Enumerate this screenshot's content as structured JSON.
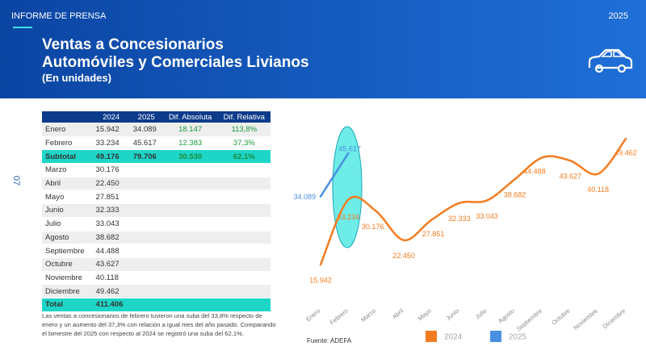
{
  "header": {
    "section": "INFORME DE PRENSA",
    "year": "2025",
    "title_line1": "Ventas a Concesionarios",
    "title_line2": "Automóviles y Comerciales Livianos",
    "subtitle": "(En unidades)"
  },
  "page_number": "07",
  "table": {
    "header": [
      "",
      "2024",
      "2025",
      "Dif. Absoluta",
      "Dif. Relativa"
    ],
    "rows": [
      [
        "Enero",
        "15.942",
        "34.089",
        "18.147",
        "113,8%"
      ],
      [
        "Febrero",
        "33.234",
        "45.617",
        "12.383",
        "37,3%"
      ],
      [
        "Subtotal",
        "49.176",
        "79.706",
        "30.530",
        "62,1%"
      ],
      [
        "Marzo",
        "30.176"
      ],
      [
        "Abril",
        "22.450"
      ],
      [
        "Mayo",
        "27.851"
      ],
      [
        "Junio",
        "32.333"
      ],
      [
        "Julio",
        "33.043"
      ],
      [
        "Agosto",
        "38.682"
      ],
      [
        "Septiembre",
        "44.488"
      ],
      [
        "Octubre",
        "43.627"
      ],
      [
        "Noviembre",
        "40.118"
      ],
      [
        "Diciembre",
        "49.462"
      ],
      [
        "Total",
        "411.406"
      ]
    ]
  },
  "note": "Las ventas a concesionarios de febrero tuvieron una suba del 33,8% respecto de enero y un aumento del 37,3% con relación a igual mes del año pasado. Comparando el bimestre del 2025 con respecto al 2024 se registró una suba del 62,1%.",
  "source": "Fuente: ADEFA",
  "chart_data": {
    "type": "line",
    "categories": [
      "Enero",
      "Febrero",
      "Marzo",
      "Abril",
      "Mayo",
      "Junio",
      "Julio",
      "Agosto",
      "Septiembre",
      "Octubre",
      "Noviembre",
      "Diciembre"
    ],
    "series": [
      {
        "name": "2024",
        "color": "#f47c20",
        "values": [
          15942,
          33234,
          30176,
          22450,
          27851,
          32333,
          33043,
          38682,
          44488,
          43627,
          40118,
          49462
        ],
        "value_labels": [
          "15.942",
          "33.234",
          "30.176",
          "22.450",
          "27.851",
          "32.333",
          "33.043",
          "38.682",
          "44.488",
          "43.627",
          "40.118",
          "49.462"
        ]
      },
      {
        "name": "2025",
        "color": "#4a90e2",
        "values": [
          34089,
          45617,
          null,
          null,
          null,
          null,
          null,
          null,
          null,
          null,
          null,
          null
        ],
        "value_labels": [
          "34.089",
          "45.617",
          null,
          null,
          null,
          null,
          null,
          null,
          null,
          null,
          null,
          null
        ]
      }
    ]
  }
}
